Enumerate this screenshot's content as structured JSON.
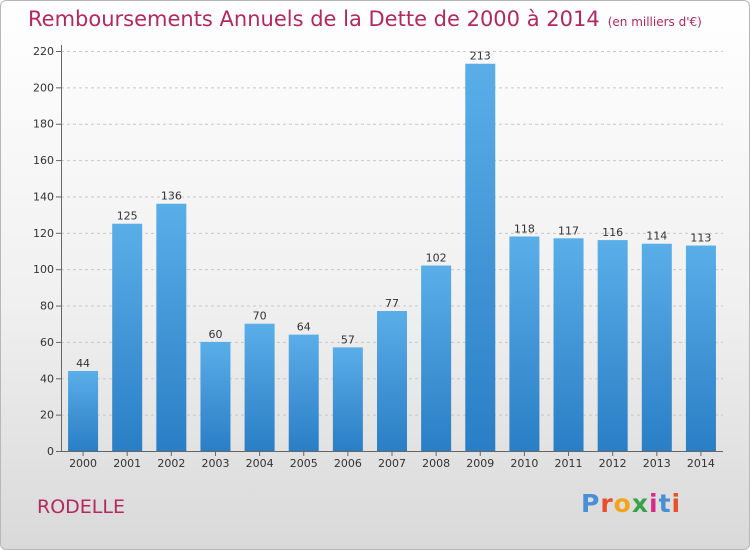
{
  "title": "Remboursements Annuels de la Dette de 2000 à 2014",
  "subtitle": "(en milliers d'€)",
  "commune": "RODELLE",
  "logo": {
    "text": "Proxiti"
  },
  "colors": {
    "title": "#b5285f",
    "bar_light": "#5aaee8",
    "bar_dark": "#2a7ec5",
    "grid": "#c8c8c8",
    "logo": [
      "#4a8fd6",
      "#e94f2b",
      "#f2a51c",
      "#3aa04a",
      "#d82a88",
      "#4a8fd6",
      "#e94f2b"
    ]
  },
  "chart_data": {
    "type": "bar",
    "title": "Remboursements Annuels de la Dette de 2000 à 2014",
    "subtitle": "(en milliers d'€)",
    "xlabel": "",
    "ylabel": "",
    "categories": [
      "2000",
      "2001",
      "2002",
      "2003",
      "2004",
      "2005",
      "2006",
      "2007",
      "2008",
      "2009",
      "2010",
      "2011",
      "2012",
      "2013",
      "2014"
    ],
    "values": [
      44,
      125,
      136,
      60,
      70,
      64,
      57,
      77,
      102,
      213,
      118,
      117,
      116,
      114,
      113
    ],
    "ylim": [
      0,
      220
    ],
    "yticks": [
      0,
      20,
      40,
      60,
      80,
      100,
      120,
      140,
      160,
      180,
      200,
      220
    ],
    "grid": true
  }
}
